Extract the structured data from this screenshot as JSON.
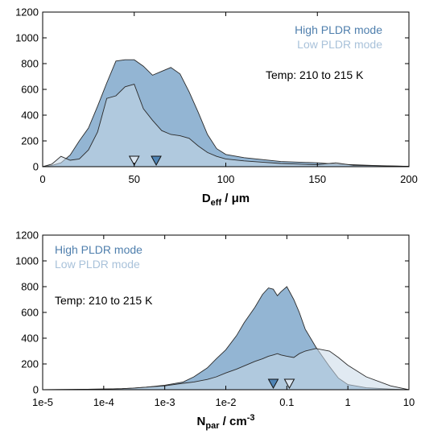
{
  "colors": {
    "high": "#6f9cc4",
    "low": "#c9d9e8",
    "high_text": "#4f7fad",
    "low_text": "#a9c2da",
    "outline": "#2b2b2b"
  },
  "chart_data": [
    {
      "type": "area",
      "xlabel": {
        "main": "D",
        "sub": "eff",
        "unit": " / μm"
      },
      "ylabel": "",
      "xlim": [
        0,
        200
      ],
      "ylim": [
        0,
        1200
      ],
      "xscale": "linear",
      "xticks": [
        0,
        50,
        100,
        150,
        200
      ],
      "xtick_labels": [
        "0",
        "50",
        "100",
        "150",
        "200"
      ],
      "yticks": [
        0,
        200,
        400,
        600,
        800,
        1000,
        1200
      ],
      "ytick_labels": [
        "0",
        "200",
        "400",
        "600",
        "800",
        "1000",
        "1200"
      ],
      "legend_position": "top-right",
      "annotation": "Temp: 210 to 215 K",
      "series": [
        {
          "name": "High PLDR mode",
          "x": [
            0,
            5,
            10,
            15,
            20,
            25,
            30,
            35,
            40,
            45,
            50,
            55,
            60,
            65,
            70,
            75,
            80,
            85,
            90,
            95,
            100,
            110,
            120,
            130,
            140,
            150,
            160,
            170,
            180,
            190,
            200
          ],
          "y": [
            0,
            10,
            30,
            90,
            200,
            300,
            470,
            650,
            820,
            830,
            830,
            780,
            710,
            740,
            770,
            720,
            580,
            420,
            250,
            140,
            95,
            70,
            55,
            40,
            35,
            30,
            20,
            15,
            10,
            6,
            3
          ],
          "markers": [
            62
          ]
        },
        {
          "name": "Low PLDR mode",
          "x": [
            0,
            5,
            10,
            15,
            20,
            25,
            30,
            35,
            40,
            45,
            50,
            55,
            60,
            65,
            70,
            75,
            80,
            85,
            90,
            95,
            100,
            110,
            120,
            130,
            140,
            150,
            160,
            170,
            180,
            190,
            200
          ],
          "y": [
            0,
            20,
            80,
            50,
            60,
            130,
            270,
            530,
            550,
            620,
            640,
            450,
            360,
            280,
            250,
            240,
            220,
            160,
            110,
            80,
            60,
            45,
            35,
            25,
            20,
            15,
            30,
            10,
            8,
            5,
            3
          ],
          "markers": [
            50
          ]
        }
      ]
    },
    {
      "type": "area",
      "xlabel": {
        "main": "N",
        "sub": "par",
        "unit": " / cm",
        "sup": "-3"
      },
      "ylabel": "",
      "xlim": [
        -5,
        1
      ],
      "ylim": [
        0,
        1200
      ],
      "xscale": "log",
      "xticks": [
        -5,
        -4,
        -3,
        -2,
        -1,
        0,
        1
      ],
      "xtick_labels": [
        "1e-5",
        "1e-4",
        "1e-3",
        "1e-2",
        "0.1",
        "1",
        "10"
      ],
      "yticks": [
        0,
        200,
        400,
        600,
        800,
        1000,
        1200
      ],
      "ytick_labels": [
        "0",
        "200",
        "400",
        "600",
        "800",
        "1000",
        "1200"
      ],
      "legend_position": "top-left",
      "annotation": "Temp: 210 to 215 K",
      "series": [
        {
          "name": "High PLDR mode",
          "x": [
            1e-05,
            3e-05,
            0.0001,
            0.0002,
            0.0003,
            0.0005,
            0.001,
            0.002,
            0.003,
            0.005,
            0.007,
            0.01,
            0.015,
            0.02,
            0.03,
            0.04,
            0.05,
            0.06,
            0.07,
            0.08,
            0.1,
            0.13,
            0.16,
            0.2,
            0.3,
            0.5,
            0.7,
            1,
            2,
            5,
            10
          ],
          "y": [
            0,
            2,
            5,
            8,
            12,
            20,
            35,
            60,
            100,
            170,
            240,
            310,
            420,
            520,
            640,
            740,
            790,
            780,
            730,
            760,
            800,
            700,
            600,
            470,
            330,
            180,
            90,
            40,
            15,
            5,
            0
          ],
          "markers": [
            0.06
          ]
        },
        {
          "name": "Low PLDR mode",
          "x": [
            1e-05,
            3e-05,
            0.0001,
            0.0002,
            0.0003,
            0.0005,
            0.001,
            0.002,
            0.003,
            0.005,
            0.007,
            0.01,
            0.015,
            0.02,
            0.03,
            0.04,
            0.05,
            0.06,
            0.07,
            0.08,
            0.1,
            0.13,
            0.16,
            0.2,
            0.3,
            0.5,
            0.7,
            1,
            2,
            5,
            10
          ],
          "y": [
            0,
            2,
            5,
            8,
            12,
            20,
            30,
            50,
            60,
            80,
            100,
            130,
            160,
            185,
            220,
            240,
            260,
            270,
            280,
            270,
            260,
            250,
            280,
            300,
            320,
            300,
            250,
            190,
            100,
            30,
            0
          ],
          "markers": [
            0.11
          ]
        }
      ]
    }
  ]
}
